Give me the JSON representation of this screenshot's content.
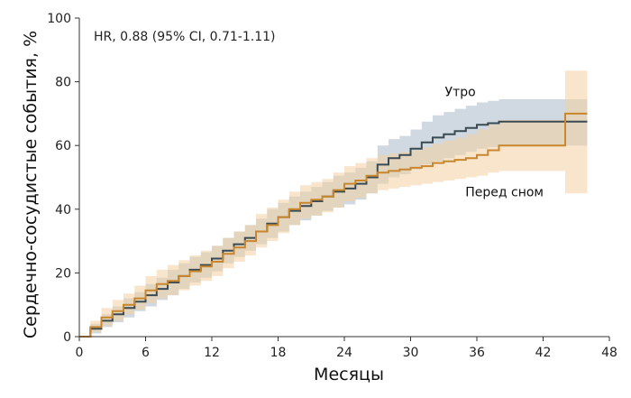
{
  "chart_data": {
    "type": "line",
    "subtype": "kaplan-meier-step-with-ci",
    "annotation": "HR, 0.88 (95% CI, 0.71-1.11)",
    "xlabel": "Месяцы",
    "ylabel": "Сердечно-сосудистые события, %",
    "xlim": [
      0,
      48
    ],
    "ylim": [
      0,
      100
    ],
    "xticks": [
      0,
      6,
      12,
      18,
      24,
      30,
      36,
      42,
      48
    ],
    "yticks": [
      0,
      20,
      40,
      60,
      80,
      100
    ],
    "grid": false,
    "series": [
      {
        "name": "Утро",
        "color": "#3a4a52",
        "band_color": "#a9b9c8",
        "x": [
          0,
          1,
          2,
          3,
          4,
          5,
          6,
          7,
          8,
          9,
          10,
          11,
          12,
          13,
          14,
          15,
          16,
          17,
          18,
          19,
          20,
          21,
          22,
          23,
          24,
          25,
          26,
          27,
          28,
          29,
          30,
          31,
          32,
          33,
          34,
          35,
          36,
          37,
          38,
          40,
          42,
          44,
          46
        ],
        "y": [
          0,
          2.5,
          5,
          7,
          9,
          11,
          13,
          15,
          17,
          19,
          21,
          22.5,
          24.5,
          27,
          29,
          31,
          33,
          35.5,
          37.5,
          39.5,
          41,
          42.5,
          44,
          45.5,
          46.5,
          48,
          50,
          54,
          56,
          57,
          59,
          61,
          62.5,
          63.5,
          64.5,
          65.5,
          66.5,
          67,
          67.5,
          67.5,
          67.5,
          67.5,
          67.5
        ],
        "lower": [
          0,
          1,
          3,
          4.5,
          6,
          8,
          9.5,
          11.5,
          13,
          15,
          17,
          18.5,
          20.5,
          23,
          25,
          27,
          29,
          31,
          33,
          35,
          36.5,
          38,
          39.5,
          40.5,
          41.5,
          43,
          45,
          48,
          50,
          51,
          52.5,
          54,
          55,
          56,
          57,
          58,
          59,
          59.5,
          60,
          60,
          60,
          60,
          60
        ],
        "upper": [
          0,
          4,
          7,
          9.5,
          12,
          14,
          16.5,
          18.5,
          21,
          23,
          25,
          26.5,
          28.5,
          31,
          33,
          35,
          37,
          40,
          42,
          44,
          45.5,
          47,
          48.5,
          50.5,
          51.5,
          53,
          55,
          60,
          62,
          63,
          65,
          67.5,
          69.5,
          70.5,
          71.5,
          72.5,
          73.5,
          74,
          74.5,
          74.5,
          74.5,
          74.5,
          74.5
        ]
      },
      {
        "name": "Перед сном",
        "color": "#c8872f",
        "band_color": "#f3cfa1",
        "x": [
          0,
          1,
          2,
          3,
          4,
          5,
          6,
          7,
          8,
          9,
          10,
          11,
          12,
          13,
          14,
          15,
          16,
          17,
          18,
          19,
          20,
          21,
          22,
          23,
          24,
          25,
          26,
          27,
          28,
          29,
          30,
          31,
          32,
          33,
          34,
          35,
          36,
          37,
          38,
          40,
          42,
          44,
          46
        ],
        "y": [
          0,
          3,
          6,
          8,
          10,
          12,
          14.5,
          16.5,
          17.5,
          19,
          20.5,
          22,
          23.5,
          26,
          28,
          30,
          33,
          35,
          37.5,
          40,
          42,
          43,
          44,
          46,
          48,
          49,
          50.5,
          51.5,
          52,
          52.5,
          53,
          53.5,
          54.5,
          55,
          55.5,
          56,
          57,
          58.5,
          60,
          60,
          60,
          70,
          70
        ],
        "lower": [
          0,
          1.5,
          3.5,
          5,
          7,
          8.5,
          10.5,
          12,
          13,
          14.5,
          16,
          17.5,
          19,
          21.5,
          23.5,
          25.5,
          28,
          30,
          32.5,
          35,
          37,
          38,
          39,
          40.5,
          42.5,
          43.5,
          45,
          46,
          46.5,
          47,
          47.5,
          48,
          48.5,
          49,
          49.5,
          50,
          50.5,
          51.5,
          52,
          52,
          52,
          45,
          45
        ],
        "upper": [
          0,
          5,
          9,
          11.5,
          13.5,
          16,
          19,
          21,
          22.5,
          24,
          25.5,
          27,
          28.5,
          31,
          33,
          35,
          38.5,
          40.5,
          43,
          45.5,
          47.5,
          48.5,
          49.5,
          51.5,
          53.5,
          54.5,
          56,
          57,
          57.5,
          58,
          58.5,
          59.5,
          60.5,
          61.5,
          62.5,
          63.5,
          65,
          66.5,
          68,
          68,
          68,
          83.5,
          83.5
        ]
      }
    ]
  }
}
